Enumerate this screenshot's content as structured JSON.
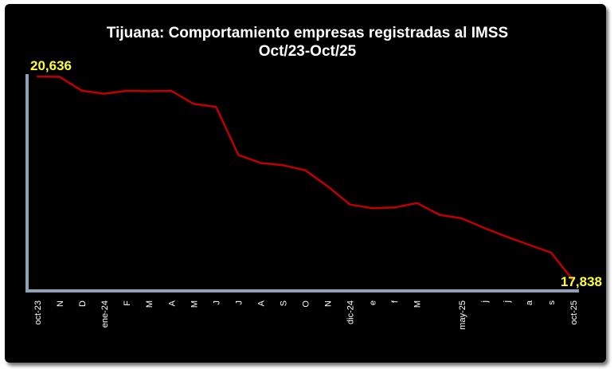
{
  "chart_data": {
    "type": "line",
    "title": "Tijuana: Comportamiento empresas registradas al IMSS",
    "subtitle": "Oct/23-Oct/25",
    "xlabel": "",
    "ylabel": "",
    "categories": [
      "oct-23",
      "N",
      "D",
      "ene-24",
      "F",
      "M",
      "A",
      "M",
      "J",
      "J",
      "A",
      "S",
      "O",
      "N",
      "dic-24",
      "e",
      "f",
      "M",
      "",
      "may-25",
      "j",
      "j",
      "a",
      "s",
      "oct-25"
    ],
    "series": [
      {
        "values": [
          20636,
          20630,
          20440,
          20400,
          20440,
          20435,
          20438,
          20260,
          20220,
          19560,
          19450,
          19420,
          19350,
          19130,
          18880,
          18830,
          18840,
          18900,
          18740,
          18690,
          18560,
          18440,
          18330,
          18220,
          17838
        ]
      }
    ],
    "data_labels": [
      {
        "index": 0,
        "text": "20,636"
      },
      {
        "index": 24,
        "text": "17,838"
      }
    ],
    "ylim": [
      17838,
      20636
    ],
    "grid": false,
    "legend": "none",
    "colors": {
      "background": "#000000",
      "line": "#c00000",
      "axis": "#8fa0b8",
      "title": "#ffffff",
      "tick_labels": "#ffffff",
      "data_labels": "#ffff33"
    }
  }
}
